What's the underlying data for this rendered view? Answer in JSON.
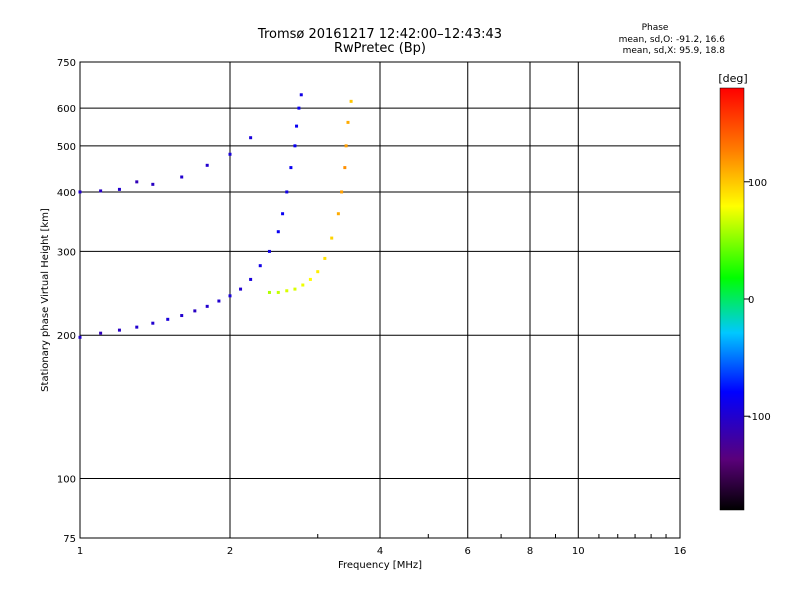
{
  "chart_data": {
    "type": "scatter",
    "title": "Tromsø 20161217 12:42:00–12:43:43",
    "subtitle": "RwPretec (Bp)",
    "xlabel": "Frequency [MHz]",
    "ylabel": "Stationary phase Virtual Height [km]",
    "x_scale": "log",
    "y_scale": "log",
    "xlim": [
      1,
      16
    ],
    "ylim": [
      75,
      750
    ],
    "x_ticks": [
      1,
      2,
      4,
      6,
      8,
      10,
      16
    ],
    "y_ticks": [
      75,
      100,
      200,
      300,
      400,
      500,
      600,
      750
    ],
    "grid": true,
    "stats": {
      "title": "Phase",
      "line_o": "mean, sd,O: -91.2, 16.6",
      "line_x": "mean, sd,X:  95.9, 18.8"
    },
    "colorbar": {
      "label": "[deg]",
      "range": [
        -180,
        180
      ],
      "ticks": [
        100,
        0,
        -100
      ],
      "colors": [
        "#000000",
        "#5a007a",
        "#0000ff",
        "#00c8ff",
        "#00ff00",
        "#ffff00",
        "#ff8000",
        "#ff0000"
      ]
    },
    "series": [
      {
        "description_trace": "o-mode low trace",
        "points": [
          [
            1.0,
            198,
            -100
          ],
          [
            1.1,
            202,
            -110
          ],
          [
            1.2,
            205,
            -105
          ],
          [
            1.3,
            208,
            -100
          ],
          [
            1.4,
            212,
            -100
          ],
          [
            1.5,
            216,
            -95
          ],
          [
            1.6,
            220,
            -100
          ],
          [
            1.7,
            225,
            -105
          ],
          [
            1.8,
            230,
            -100
          ],
          [
            1.9,
            236,
            -100
          ],
          [
            2.0,
            242,
            -95
          ],
          [
            2.1,
            250,
            -100
          ],
          [
            2.2,
            262,
            -95
          ],
          [
            2.3,
            280,
            -90
          ],
          [
            2.4,
            300,
            -90
          ],
          [
            2.5,
            330,
            -85
          ],
          [
            2.55,
            360,
            -85
          ],
          [
            2.6,
            400,
            -90
          ],
          [
            2.65,
            450,
            -85
          ],
          [
            2.7,
            500,
            -85
          ],
          [
            2.72,
            550,
            -85
          ],
          [
            2.75,
            600,
            -85
          ],
          [
            2.78,
            640,
            -90
          ]
        ]
      },
      {
        "description_trace": "x-mode trace",
        "points": [
          [
            2.4,
            246,
            60
          ],
          [
            2.5,
            246,
            65
          ],
          [
            2.6,
            248,
            70
          ],
          [
            2.7,
            250,
            70
          ],
          [
            2.8,
            255,
            75
          ],
          [
            2.9,
            262,
            80
          ],
          [
            3.0,
            272,
            85
          ],
          [
            3.1,
            290,
            90
          ],
          [
            3.2,
            320,
            95
          ],
          [
            3.3,
            360,
            110
          ],
          [
            3.35,
            400,
            115
          ],
          [
            3.4,
            450,
            120
          ],
          [
            3.42,
            500,
            115
          ],
          [
            3.45,
            560,
            110
          ],
          [
            3.5,
            620,
            100
          ]
        ]
      },
      {
        "description_trace": "upper diffuse trace",
        "points": [
          [
            1.0,
            400,
            -100
          ],
          [
            1.2,
            405,
            -100
          ],
          [
            1.4,
            415,
            -105
          ],
          [
            1.6,
            430,
            -100
          ],
          [
            1.8,
            455,
            -100
          ],
          [
            2.0,
            480,
            -95
          ],
          [
            2.2,
            520,
            -95
          ],
          [
            1.3,
            420,
            -110
          ],
          [
            1.1,
            402,
            -105
          ]
        ]
      }
    ]
  }
}
